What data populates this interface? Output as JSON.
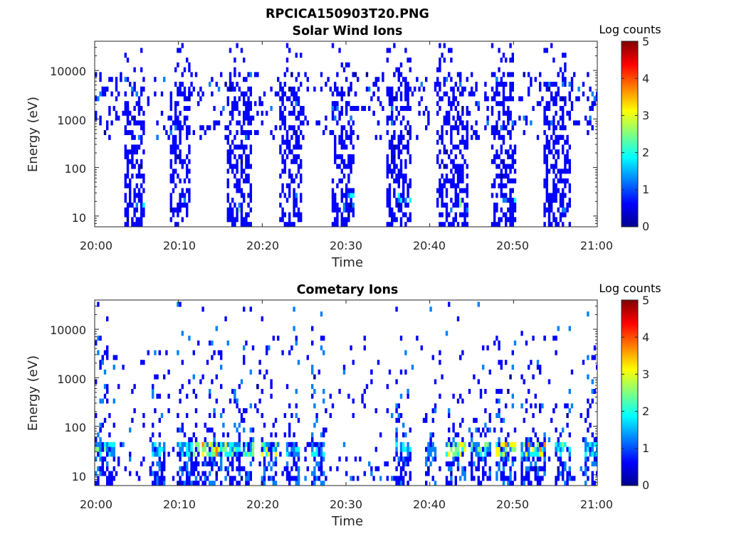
{
  "figure": {
    "title": "RPCICA150903T20.PNG"
  },
  "colormap": [
    "#00008f",
    "#0000ff",
    "#0080ff",
    "#00ffff",
    "#80ff80",
    "#ffff00",
    "#ff8000",
    "#ff0000",
    "#800000"
  ],
  "chart_data": [
    {
      "type": "heatmap",
      "title": "Solar Wind Ions",
      "xlabel": "Time",
      "ylabel": "Energy (eV)",
      "x_range": [
        "20:00",
        "21:00"
      ],
      "xticks": [
        "20:00",
        "20:10",
        "20:20",
        "20:30",
        "20:40",
        "20:50",
        "21:00"
      ],
      "y_scale": "log",
      "y_range": [
        6,
        40000
      ],
      "yticks": [
        "10",
        "100",
        "1000",
        "10000"
      ],
      "colorbar": {
        "label": "Log counts",
        "range": [
          0,
          5
        ],
        "ticks": [
          "0",
          "1",
          "2",
          "3",
          "4",
          "5"
        ]
      },
      "bursts": [
        {
          "start_min": 3.8,
          "end_min": 5.6,
          "max_log_counts": 1.4
        },
        {
          "start_min": 9.2,
          "end_min": 11.0,
          "max_log_counts": 1.7
        },
        {
          "start_min": 16.0,
          "end_min": 18.3,
          "max_log_counts": 1.8
        },
        {
          "start_min": 22.2,
          "end_min": 24.4,
          "max_log_counts": 1.0
        },
        {
          "start_min": 28.5,
          "end_min": 30.6,
          "max_log_counts": 1.2
        },
        {
          "start_min": 35.0,
          "end_min": 37.3,
          "max_log_counts": 1.6
        },
        {
          "start_min": 41.0,
          "end_min": 44.3,
          "max_log_counts": 2.8
        },
        {
          "start_min": 47.5,
          "end_min": 50.0,
          "max_log_counts": 2.5
        },
        {
          "start_min": 53.8,
          "end_min": 56.5,
          "max_log_counts": 2.0
        }
      ]
    },
    {
      "type": "heatmap",
      "title": "Cometary Ions",
      "xlabel": "Time",
      "ylabel": "Energy (eV)",
      "x_range": [
        "20:00",
        "21:00"
      ],
      "xticks": [
        "20:00",
        "20:10",
        "20:20",
        "20:30",
        "20:40",
        "20:50",
        "21:00"
      ],
      "y_scale": "log",
      "y_range": [
        6,
        40000
      ],
      "yticks": [
        "10",
        "100",
        "1000",
        "10000"
      ],
      "colorbar": {
        "label": "Log counts",
        "range": [
          0,
          5
        ],
        "ticks": [
          "0",
          "1",
          "2",
          "3",
          "4",
          "5"
        ]
      },
      "bursts": [
        {
          "start_min": 0.0,
          "end_min": 2.0,
          "max_log_counts": 2.4
        },
        {
          "start_min": 7.0,
          "end_min": 8.0,
          "max_log_counts": 2.0
        },
        {
          "start_min": 10.0,
          "end_min": 12.0,
          "max_log_counts": 2.6
        },
        {
          "start_min": 13.0,
          "end_min": 15.5,
          "max_log_counts": 3.6
        },
        {
          "start_min": 16.0,
          "end_min": 18.5,
          "max_log_counts": 2.4
        },
        {
          "start_min": 20.0,
          "end_min": 21.3,
          "max_log_counts": 3.3
        },
        {
          "start_min": 23.0,
          "end_min": 24.0,
          "max_log_counts": 2.0
        },
        {
          "start_min": 26.0,
          "end_min": 27.0,
          "max_log_counts": 2.0
        },
        {
          "start_min": 36.0,
          "end_min": 37.5,
          "max_log_counts": 2.0
        },
        {
          "start_min": 39.5,
          "end_min": 40.5,
          "max_log_counts": 1.4
        },
        {
          "start_min": 42.0,
          "end_min": 44.0,
          "max_log_counts": 3.3
        },
        {
          "start_min": 45.0,
          "end_min": 47.0,
          "max_log_counts": 2.4
        },
        {
          "start_min": 48.0,
          "end_min": 50.0,
          "max_log_counts": 3.3
        },
        {
          "start_min": 51.0,
          "end_min": 53.5,
          "max_log_counts": 3.7
        },
        {
          "start_min": 55.0,
          "end_min": 56.5,
          "max_log_counts": 2.2
        },
        {
          "start_min": 58.5,
          "end_min": 60.0,
          "max_log_counts": 2.0
        }
      ]
    }
  ]
}
